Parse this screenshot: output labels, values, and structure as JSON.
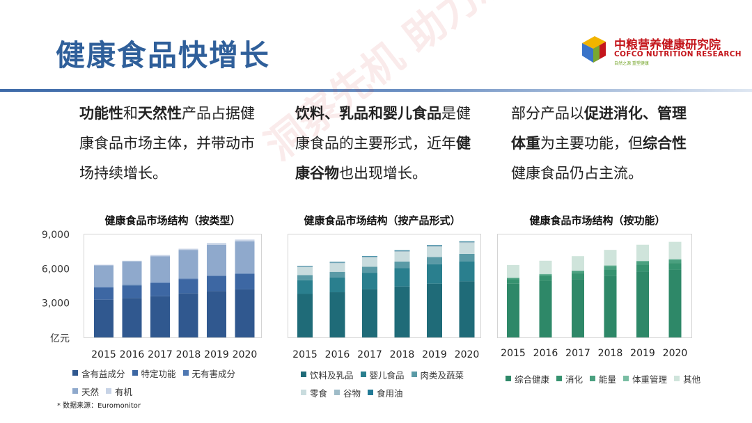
{
  "page": {
    "title": "健康食品快增长",
    "watermark": "洞察先机 助力决策",
    "source_note": "* 数据来源：Euromonitor"
  },
  "logo": {
    "cn": "中粮营养健康研究院",
    "en": "COFCO NUTRITION RESEARCH",
    "tagline": "自然之源 重塑健康"
  },
  "colors": {
    "title": "#2f5f9a",
    "chart1": [
      "#30588f",
      "#3d67a3",
      "#4f78b2",
      "#8fa9cc",
      "#c7d3e6"
    ],
    "chart2": [
      "#1f6b78",
      "#2a7f8e",
      "#5a9aa6",
      "#c9dcde",
      "#9fbcc8",
      "#227a96"
    ],
    "chart3": [
      "#2e8868",
      "#36926f",
      "#4aa07f",
      "#79bda3",
      "#cfe4db"
    ]
  },
  "paragraphs": [
    {
      "segments": [
        {
          "text": "功能性",
          "bold": true
        },
        {
          "text": "和",
          "bold": false
        },
        {
          "text": "天然性",
          "bold": true
        },
        {
          "text": "产品占据健康食品市场主体，并带动市场持续增长。",
          "bold": false
        }
      ]
    },
    {
      "segments": [
        {
          "text": "饮料、乳品和婴儿食品",
          "bold": true
        },
        {
          "text": "是健康食品的主要形式，近年",
          "bold": false
        },
        {
          "text": "健康谷物",
          "bold": true
        },
        {
          "text": "也出现增长。",
          "bold": false
        }
      ]
    },
    {
      "segments": [
        {
          "text": "部分产品以",
          "bold": false
        },
        {
          "text": "促进消化、管理体重",
          "bold": true
        },
        {
          "text": "为主要功能，但",
          "bold": false
        },
        {
          "text": "综合性",
          "bold": true
        },
        {
          "text": "健康食品仍占主流。",
          "bold": false
        }
      ]
    }
  ],
  "chart_data": [
    {
      "type": "bar",
      "stacked": true,
      "title": "健康食品市场结构（按类型）",
      "ylabel": "亿元",
      "ylim": [
        0,
        9000
      ],
      "yticks": [
        "9,000",
        "6,000",
        "3,000"
      ],
      "categories": [
        "2015",
        "2016",
        "2017",
        "2018",
        "2019",
        "2020"
      ],
      "series": [
        {
          "name": "含有益成分",
          "values": [
            3300,
            3450,
            3600,
            3850,
            4050,
            4200
          ]
        },
        {
          "name": "特定功能",
          "values": [
            1050,
            1100,
            1150,
            1250,
            1300,
            1350
          ]
        },
        {
          "name": "无有害成分",
          "values": [
            50,
            50,
            50,
            50,
            50,
            50
          ]
        },
        {
          "name": "天然",
          "values": [
            1900,
            2050,
            2300,
            2500,
            2700,
            2800
          ]
        },
        {
          "name": "有机",
          "values": [
            50,
            50,
            100,
            100,
            150,
            150
          ]
        }
      ],
      "grid": false,
      "legend_placement": "bottom"
    },
    {
      "type": "bar",
      "stacked": true,
      "title": "健康食品市场结构（按产品形式）",
      "ylim": [
        0,
        9000
      ],
      "categories": [
        "2015",
        "2016",
        "2017",
        "2018",
        "2019",
        "2020"
      ],
      "series": [
        {
          "name": "饮料及乳品",
          "values": [
            3800,
            3950,
            4200,
            4450,
            4700,
            4900
          ]
        },
        {
          "name": "婴儿食品",
          "values": [
            1200,
            1300,
            1450,
            1600,
            1700,
            1750
          ]
        },
        {
          "name": "肉类及蔬菜",
          "values": [
            450,
            480,
            530,
            580,
            620,
            650
          ]
        },
        {
          "name": "零食",
          "values": [
            700,
            750,
            800,
            850,
            900,
            950
          ]
        },
        {
          "name": "谷物",
          "values": [
            50,
            60,
            70,
            80,
            90,
            100
          ]
        },
        {
          "name": "食用油",
          "values": [
            50,
            60,
            50,
            60,
            60,
            50
          ]
        }
      ],
      "grid": false,
      "legend_placement": "bottom"
    },
    {
      "type": "bar",
      "stacked": true,
      "title": "健康食品市场结构（按功能）",
      "ylim": [
        0,
        9000
      ],
      "categories": [
        "2015",
        "2016",
        "2017",
        "2018",
        "2019",
        "2020"
      ],
      "series": [
        {
          "name": "综合健康",
          "values": [
            4700,
            4950,
            5100,
            5400,
            5750,
            5900
          ]
        },
        {
          "name": "消化",
          "values": [
            400,
            450,
            500,
            550,
            600,
            600
          ]
        },
        {
          "name": "能量",
          "values": [
            80,
            100,
            200,
            300,
            300,
            300
          ]
        },
        {
          "name": "体重管理",
          "values": [
            50,
            50,
            50,
            50,
            50,
            50
          ]
        },
        {
          "name": "其他",
          "values": [
            1100,
            1150,
            1250,
            1350,
            1400,
            1500
          ]
        }
      ],
      "grid": false,
      "legend_placement": "bottom"
    }
  ]
}
